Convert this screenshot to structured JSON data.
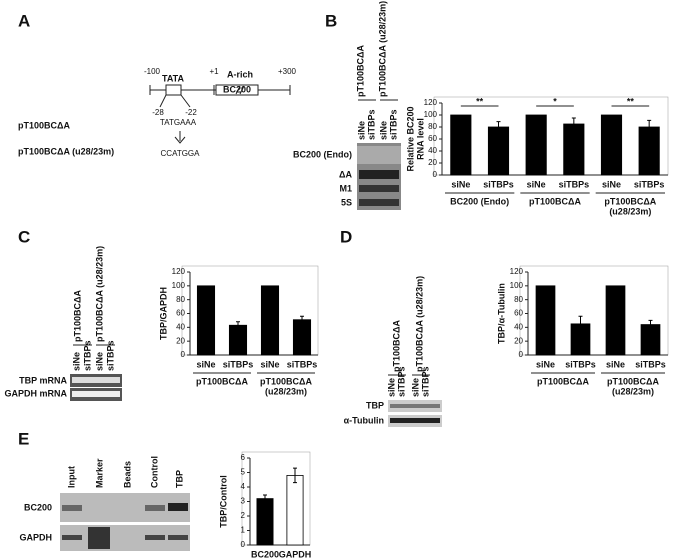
{
  "figure": {
    "A": {
      "label": "A",
      "scale": [
        "-100",
        "+1",
        "+300"
      ],
      "tata": "TATA",
      "arich": "A-rich",
      "gene": "BC200",
      "pos": [
        "-28",
        "-22"
      ],
      "seq": "TATGAAA",
      "mut": "CCATGGA",
      "constructs": [
        "pT100BCΔA",
        "pT100BCΔA (u28/23m)"
      ]
    },
    "B": {
      "label": "B",
      "constructs": [
        "pT100BCΔA",
        "pT100BCΔA (u28/23m)"
      ],
      "lanes": [
        "siNe",
        "siTBPs",
        "siNe",
        "siTBPs"
      ],
      "rows": [
        "BC200 (Endo)",
        "ΔA",
        "M1",
        "5S"
      ]
    },
    "C": {
      "label": "C",
      "constructs": [
        "pT100BCΔA",
        "pT100BCΔA (u28/23m)"
      ],
      "lanes": [
        "siNe",
        "siTBPs",
        "siNe",
        "siTBPs"
      ],
      "rows": [
        "TBP mRNA",
        "GAPDH mRNA"
      ]
    },
    "D": {
      "label": "D",
      "constructs": [
        "pT100BCΔA",
        "pT100BCΔA (u28/23m)"
      ],
      "lanes": [
        "siNe",
        "siTBPs",
        "siNe",
        "siTBPs"
      ],
      "rows": [
        "TBP",
        "α-Tubulin"
      ]
    },
    "E": {
      "label": "E",
      "lanes": [
        "Input",
        "Marker",
        "Beads",
        "Control",
        "TBP"
      ],
      "rows": [
        "BC200",
        "GAPDH"
      ]
    }
  },
  "chart_data": [
    {
      "type": "bar",
      "ylabel": [
        "Relative BC200",
        "RNA level"
      ],
      "categories": [
        "siNe",
        "siTBPs",
        "siNe",
        "siTBPs",
        "siNe",
        "siTBPs"
      ],
      "groups": [
        [
          "BC200 (Endo)"
        ],
        [
          "pT100BCΔA"
        ],
        [
          "pT100BCΔA",
          "(u28/23m)"
        ]
      ],
      "values": [
        100,
        80,
        100,
        85,
        100,
        80
      ],
      "errors": [
        null,
        9,
        null,
        10,
        null,
        11
      ],
      "annotations": [
        "**",
        "*",
        "**"
      ],
      "color": "#000000",
      "ylim": [
        0,
        120
      ],
      "yticks": [
        0,
        20,
        40,
        60,
        80,
        100,
        120
      ]
    },
    {
      "type": "bar",
      "ylabel": [
        "TBP/GAPDH"
      ],
      "categories": [
        "siNe",
        "siTBPs",
        "siNe",
        "siTBPs"
      ],
      "groups": [
        [
          "pT100BCΔA"
        ],
        [
          "pT100BCΔA",
          "(u28/23m)"
        ]
      ],
      "values": [
        100,
        43,
        100,
        51
      ],
      "errors": [
        null,
        5,
        null,
        5
      ],
      "color": "#000000",
      "ylim": [
        0,
        120
      ],
      "yticks": [
        0,
        20,
        40,
        60,
        80,
        100,
        120
      ]
    },
    {
      "type": "bar",
      "ylabel": [
        "TBP/α-Tubulin"
      ],
      "categories": [
        "siNe",
        "siTBPs",
        "siNe",
        "siTBPs"
      ],
      "groups": [
        [
          "pT100BCΔA"
        ],
        [
          "pT100BCΔA",
          "(u28/23m)"
        ]
      ],
      "values": [
        100,
        45,
        100,
        44
      ],
      "errors": [
        null,
        11,
        null,
        6
      ],
      "color": "#000000",
      "ylim": [
        0,
        120
      ],
      "yticks": [
        0,
        20,
        40,
        60,
        80,
        100,
        120
      ]
    },
    {
      "type": "bar",
      "ylabel": [
        "TBP/Control"
      ],
      "categories": [
        "BC200",
        "GAPDH"
      ],
      "values": [
        3.2,
        4.8
      ],
      "errors": [
        0.25,
        0.5
      ],
      "colors": [
        "#000000",
        "#ffffff"
      ],
      "ylim": [
        0,
        6
      ],
      "yticks": [
        0,
        1,
        2,
        3,
        4,
        5,
        6
      ]
    }
  ]
}
